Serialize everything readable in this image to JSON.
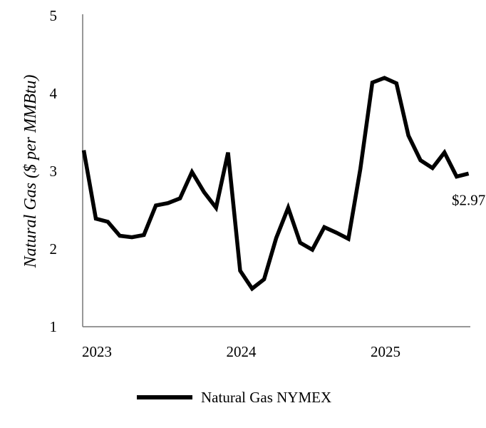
{
  "chart_data": {
    "type": "line",
    "title": "",
    "xlabel": "",
    "ylabel": "Natural Gas ($ per MMBtu)",
    "ylim": [
      1,
      5
    ],
    "yticks": [
      1,
      2,
      3,
      4,
      5
    ],
    "xticks": [
      {
        "label": "2023",
        "value": 2023.0
      },
      {
        "label": "2024",
        "value": 2024.0
      },
      {
        "label": "2025",
        "value": 2025.0
      }
    ],
    "grid": false,
    "legend_position": "bottom",
    "series": [
      {
        "name": "Natural Gas NYMEX",
        "color": "#000000",
        "points": [
          {
            "x": 2022.958,
            "y": 3.27
          },
          {
            "x": 2023.042,
            "y": 2.39
          },
          {
            "x": 2023.125,
            "y": 2.35
          },
          {
            "x": 2023.208,
            "y": 2.17
          },
          {
            "x": 2023.292,
            "y": 2.15
          },
          {
            "x": 2023.375,
            "y": 2.18
          },
          {
            "x": 2023.458,
            "y": 2.56
          },
          {
            "x": 2023.542,
            "y": 2.59
          },
          {
            "x": 2023.625,
            "y": 2.65
          },
          {
            "x": 2023.708,
            "y": 2.99
          },
          {
            "x": 2023.792,
            "y": 2.73
          },
          {
            "x": 2023.875,
            "y": 2.53
          },
          {
            "x": 2023.958,
            "y": 3.24
          },
          {
            "x": 2024.042,
            "y": 1.72
          },
          {
            "x": 2024.125,
            "y": 1.49
          },
          {
            "x": 2024.208,
            "y": 1.61
          },
          {
            "x": 2024.292,
            "y": 2.14
          },
          {
            "x": 2024.375,
            "y": 2.53
          },
          {
            "x": 2024.458,
            "y": 2.08
          },
          {
            "x": 2024.542,
            "y": 1.99
          },
          {
            "x": 2024.625,
            "y": 2.28
          },
          {
            "x": 2024.708,
            "y": 2.21
          },
          {
            "x": 2024.792,
            "y": 2.13
          },
          {
            "x": 2024.875,
            "y": 3.03
          },
          {
            "x": 2024.958,
            "y": 4.14
          },
          {
            "x": 2025.042,
            "y": 4.2
          },
          {
            "x": 2025.125,
            "y": 4.13
          },
          {
            "x": 2025.208,
            "y": 3.46
          },
          {
            "x": 2025.292,
            "y": 3.14
          },
          {
            "x": 2025.375,
            "y": 3.04
          },
          {
            "x": 2025.458,
            "y": 3.24
          },
          {
            "x": 2025.542,
            "y": 2.93
          },
          {
            "x": 2025.625,
            "y": 2.97
          }
        ]
      }
    ],
    "annotations": [
      {
        "text": "$2.97",
        "series": 0,
        "point": "last"
      }
    ]
  }
}
